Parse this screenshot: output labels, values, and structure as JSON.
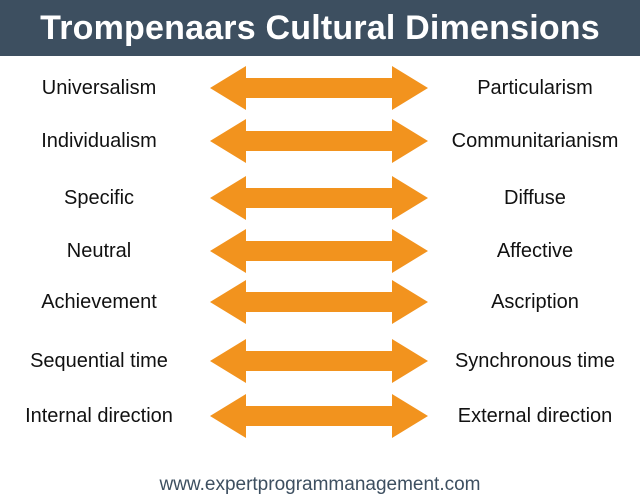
{
  "header": {
    "title": "Trompenaars Cultural Dimensions"
  },
  "arrow_color": "#f2931e",
  "header_color": "#3d4f60",
  "dimensions": [
    {
      "left": "Universalism",
      "right": "Particularism"
    },
    {
      "left": "Individualism",
      "right": "Communitarianism"
    },
    {
      "left": "Specific",
      "right": "Diffuse"
    },
    {
      "left": "Neutral",
      "right": "Affective"
    },
    {
      "left": "Achievement",
      "right": "Ascription"
    },
    {
      "left": "Sequential time",
      "right": "Synchronous time"
    },
    {
      "left": "Internal direction",
      "right": "External direction"
    }
  ],
  "icon": "double-headed-arrow-icon",
  "footer": {
    "url": "www.expertprogrammanagement.com"
  }
}
